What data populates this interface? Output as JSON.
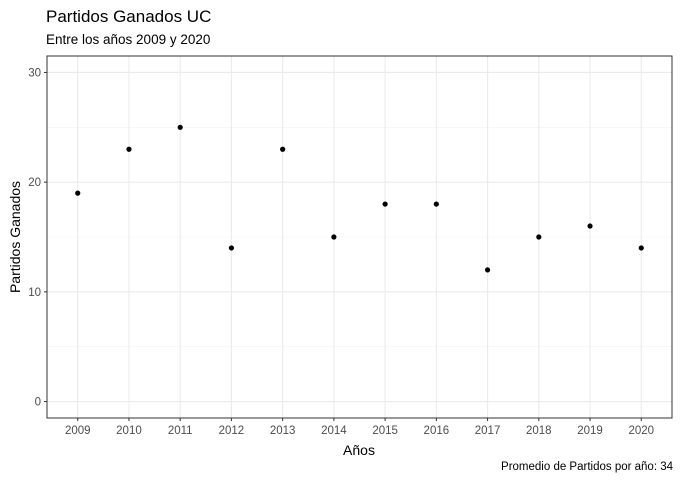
{
  "chart_data": {
    "type": "scatter",
    "title": "Partidos Ganados UC",
    "subtitle": "Entre los años 2009 y 2020",
    "caption": "Promedio de Partidos por año: 34",
    "xlabel": "Años",
    "ylabel": "Partidos Ganados",
    "x": [
      "2009",
      "2010",
      "2011",
      "2012",
      "2013",
      "2014",
      "2015",
      "2016",
      "2017",
      "2018",
      "2019",
      "2020"
    ],
    "y": [
      19,
      23,
      25,
      14,
      23,
      15,
      18,
      18,
      12,
      15,
      16,
      14
    ],
    "ylim": [
      -1.5,
      31.5
    ],
    "yticks": [
      "0",
      "10",
      "20",
      "30"
    ],
    "grid": true,
    "point_color": "#000000"
  }
}
